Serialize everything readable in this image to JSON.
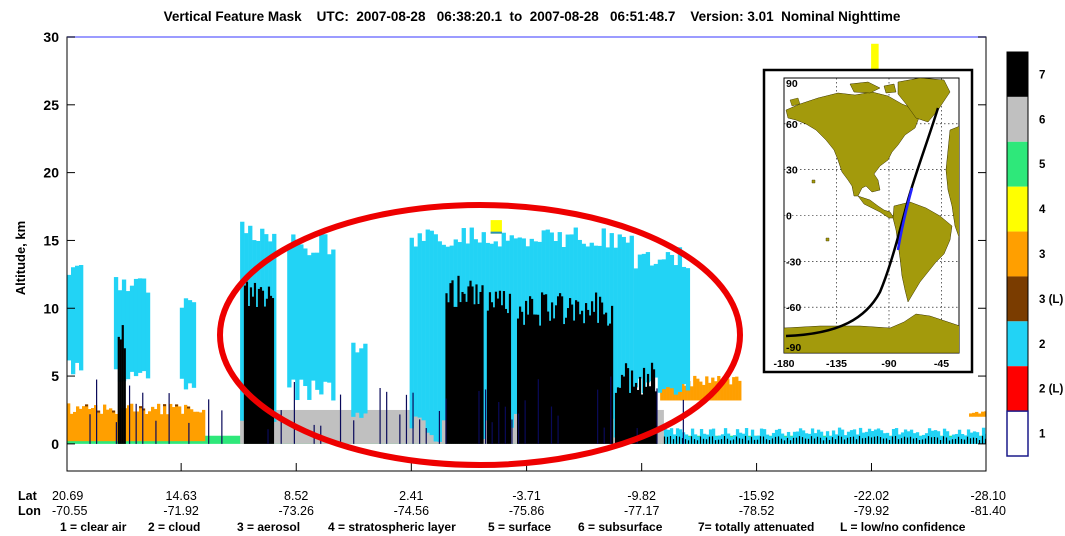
{
  "chart_data": {
    "type": "heatmap",
    "title": "Vertical Feature Mask    UTC:  2007-08-28   06:38:20.1  to  2007-08-28   06:51:48.7    Version: 3.01  Nominal Nighttime",
    "ylabel": "Altitude, km",
    "ylim": [
      -2,
      30
    ],
    "y_ticks": [
      "0",
      "5",
      "10",
      "15",
      "20",
      "25",
      "30"
    ],
    "x_label_lat": "Lat",
    "x_label_lon": "Lon",
    "x_ticks": [
      {
        "lat": "20.69",
        "lon": "-70.55"
      },
      {
        "lat": "14.63",
        "lon": "-71.92"
      },
      {
        "lat": "8.52",
        "lon": "-73.26"
      },
      {
        "lat": "2.41",
        "lon": "-74.56"
      },
      {
        "lat": "-3.71",
        "lon": "-75.86"
      },
      {
        "lat": "-9.82",
        "lon": "-77.17"
      },
      {
        "lat": "-15.92",
        "lon": "-78.52"
      },
      {
        "lat": "-22.02",
        "lon": "-79.92"
      },
      {
        "lat": "-28.10",
        "lon": "-81.40"
      }
    ],
    "footnote_items": [
      "1 = clear air",
      "2 = cloud",
      "3 = aerosol",
      "4 = stratospheric layer",
      "5 = surface",
      "6 = subsurface",
      "7= totally attenuated",
      "L = low/no confidence"
    ],
    "colorbar": [
      {
        "label": "7",
        "color": "#000000"
      },
      {
        "label": "6",
        "color": "#c0c0c0"
      },
      {
        "label": "5",
        "color": "#2ee87a"
      },
      {
        "label": "4",
        "color": "#ffff00"
      },
      {
        "label": "3",
        "color": "#ff9f00"
      },
      {
        "label": "3 (L)",
        "color": "#7a3c00"
      },
      {
        "label": "2",
        "color": "#22d3f5"
      },
      {
        "label": "2 (L)",
        "color": "#ff0000"
      },
      {
        "label": "1",
        "color": "#ffffff"
      }
    ],
    "clouds": [
      {
        "from": 20.69,
        "to": 19.9,
        "base": 5.0,
        "top": 13.5
      },
      {
        "from": 18.2,
        "to": 16.4,
        "base": 4.5,
        "top": 12.5
      },
      {
        "from": 14.7,
        "to": 14.0,
        "base": 4.0,
        "top": 11.0
      },
      {
        "from": 11.5,
        "to": 9.6,
        "base": 0.0,
        "top": 16.5
      },
      {
        "from": 9.0,
        "to": 6.5,
        "base": 3.0,
        "top": 15.5
      },
      {
        "from": 5.6,
        "to": 4.8,
        "base": 1.5,
        "top": 7.5
      },
      {
        "from": 2.5,
        "to": -9.3,
        "base": 0.0,
        "top": 16.0
      },
      {
        "from": -9.4,
        "to": -12.3,
        "base": 3.5,
        "top": 14.5
      }
    ],
    "attenuated": [
      {
        "from": 11.3,
        "to": 9.8,
        "top": 12.5
      },
      {
        "from": 18.0,
        "to": 17.6,
        "top": 9.0
      },
      {
        "from": 0.6,
        "to": -1.4,
        "top": 12.5
      },
      {
        "from": -1.6,
        "to": -2.8,
        "top": 11.5
      },
      {
        "from": -3.2,
        "to": -8.2,
        "top": 11.2
      },
      {
        "from": -8.4,
        "to": -10.6,
        "top": 6.0
      }
    ],
    "aerosol": [
      {
        "from": 20.69,
        "to": 13.4,
        "base": 0.2,
        "top": 3.0
      },
      {
        "from": -10.8,
        "to": -15.0,
        "base": 3.2,
        "top": 5.8
      },
      {
        "from": -27.2,
        "to": -28.1,
        "base": 2.0,
        "top": 2.6
      }
    ],
    "surface_cloud": {
      "from": -11.0,
      "to": -28.1,
      "top": 1.2
    },
    "stratospheric_layers": [
      {
        "from": -1.8,
        "to": -2.4,
        "base": 15.5,
        "top": 16.5
      },
      {
        "from": -22.0,
        "to": -22.4,
        "base": 27.5,
        "top": 29.5
      }
    ],
    "annotation": "red ellipse highlighting the region between about 11 and -12 degrees latitude",
    "inset_map": {
      "description": "orbit ground track over the Americas",
      "lat_ticks": [
        "90",
        "60",
        "30",
        "0",
        "-30",
        "-60",
        "-90"
      ],
      "lon_ticks": [
        "-180",
        "-135",
        "-90",
        "-45"
      ],
      "land_color": "#a39a0c",
      "track_color": "#000000",
      "segment_color": "#2323ff"
    }
  }
}
